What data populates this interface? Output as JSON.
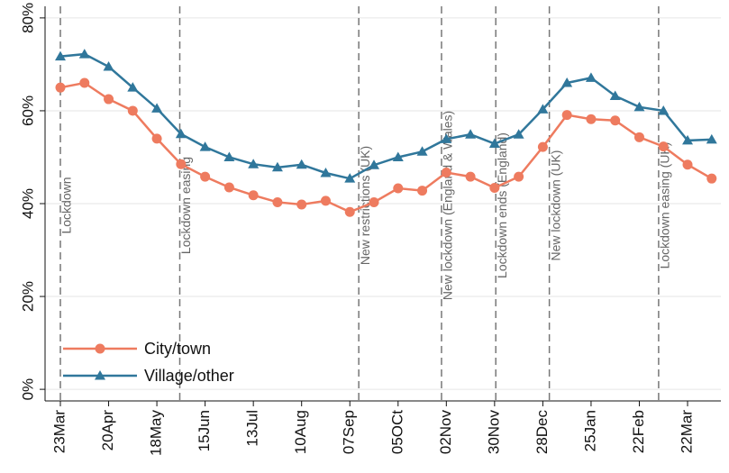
{
  "chart_data": {
    "type": "line",
    "categories": [
      "23Mar",
      null,
      "20Apr",
      null,
      "18May",
      null,
      "15Jun",
      null,
      "13Jul",
      null,
      "10Aug",
      null,
      "07Sep",
      null,
      "05OCt",
      null,
      "02Nov",
      null,
      "30Nov",
      null,
      "28Dec",
      null,
      "25Jan",
      null,
      "22Feb",
      null,
      "22Mar",
      null
    ],
    "series": [
      {
        "name": "City/town",
        "color": "#ee7b5f",
        "marker": "circle",
        "values": [
          65,
          66,
          62.5,
          60,
          54,
          48.5,
          45.8,
          43.5,
          41.8,
          40.3,
          39.8,
          40.6,
          38.2,
          40.3,
          43.3,
          42.8,
          46.7,
          45.8,
          43.4,
          45.8,
          52.2,
          59.1,
          58.2,
          57.9,
          54.3,
          52.3,
          48.4,
          45.4
        ]
      },
      {
        "name": "Village/other",
        "color": "#30779b",
        "marker": "triangle",
        "values": [
          71.7,
          72.2,
          69.5,
          65,
          60.5,
          55,
          52.2,
          50,
          48.5,
          47.8,
          48.4,
          46.6,
          45.4,
          48.3,
          50,
          51.2,
          53.9,
          54.9,
          52.9,
          54.9,
          60.3,
          66,
          67.1,
          63.2,
          60.8,
          60,
          53.6,
          53.8
        ]
      }
    ],
    "ylim": [
      -2.5,
      82.5
    ],
    "yticks": [
      {
        "value": 0,
        "label": "0%"
      },
      {
        "value": 20,
        "label": "20%"
      },
      {
        "value": 40,
        "label": "40%"
      },
      {
        "value": 60,
        "label": "60%"
      },
      {
        "value": 80,
        "label": "80%"
      }
    ],
    "grid": true,
    "legend": "lower left",
    "annotations": [
      "Lockdown",
      "Lockdown easing",
      "New restrictions (UK)",
      "New lockdown (England & Wales)",
      "Lockdown ends (England)",
      "New lockdown (UK)",
      "Lockdown easing (UK)"
    ]
  }
}
